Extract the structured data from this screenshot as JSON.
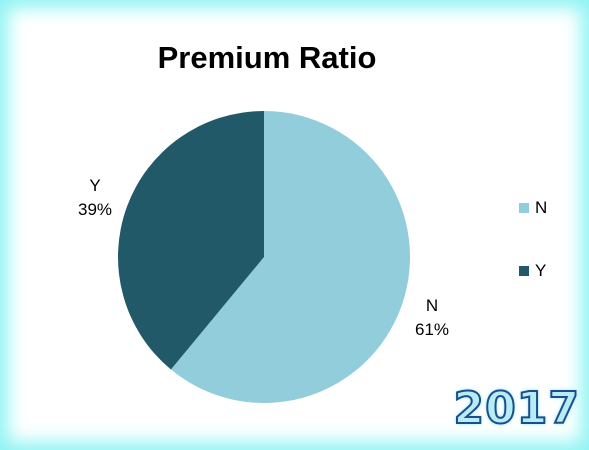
{
  "chart_data": {
    "type": "pie",
    "title": "Premium Ratio",
    "slices": [
      {
        "label": "N",
        "value": 61,
        "percent_label": "61%",
        "color": "#92cddc"
      },
      {
        "label": "Y",
        "value": 39,
        "percent_label": "39%",
        "color": "#215968"
      }
    ],
    "legend_placement": "right"
  },
  "badge": {
    "text": "2017"
  }
}
